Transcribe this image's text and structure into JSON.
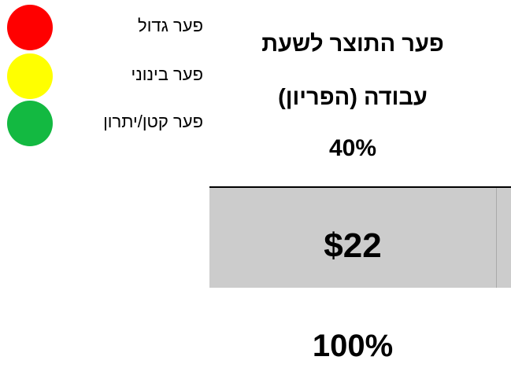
{
  "legend": [
    {
      "label": "פער גדול",
      "color": "#ff0000"
    },
    {
      "label": "פער בינוני",
      "color": "#ffff00"
    },
    {
      "label": "פער קטן/יתרון",
      "color": "#13b941"
    }
  ],
  "header": {
    "title_lines": [
      "פער התוצר לשעת",
      "עבודה (הפריון)"
    ],
    "percent": "40%"
  },
  "cell": {
    "value": "$22"
  },
  "footer": {
    "percent": "100%"
  }
}
